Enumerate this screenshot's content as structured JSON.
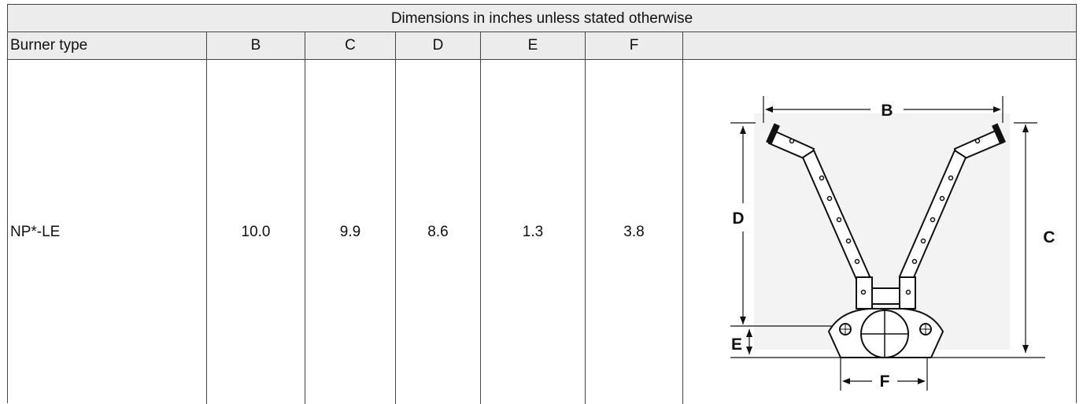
{
  "title": "Dimensions in inches unless stated otherwise",
  "headers": [
    "Burner type",
    "B",
    "C",
    "D",
    "E",
    "F"
  ],
  "rows": [
    [
      "NP*-LE",
      "10.0",
      "9.9",
      "8.6",
      "1.3",
      "3.8"
    ]
  ],
  "drawing_labels": {
    "b": "B",
    "c": "C",
    "d": "D",
    "e": "E",
    "f": "F"
  }
}
